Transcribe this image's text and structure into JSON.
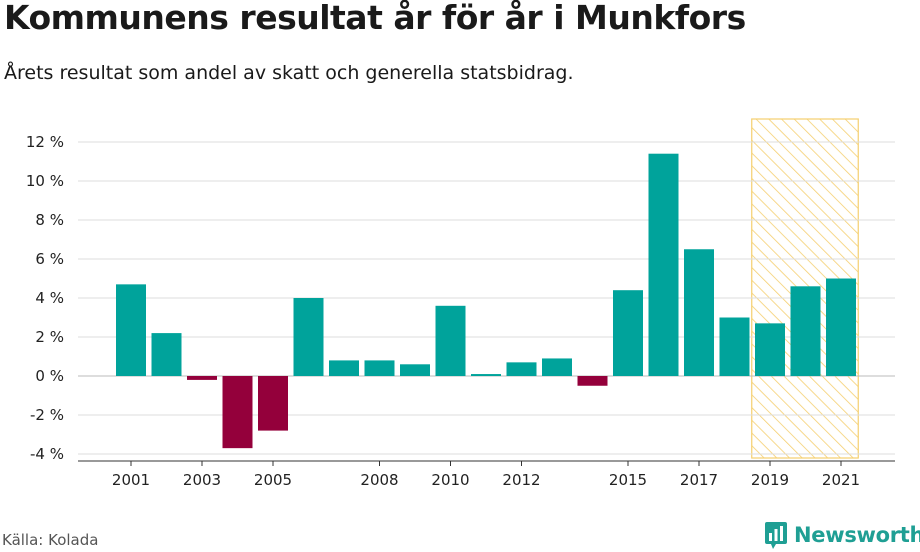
{
  "header": {
    "title": "Kommunens resultat år för år i Munkfors",
    "subtitle": "Årets resultat som andel av skatt och generella statsbidrag."
  },
  "footer": {
    "source": "Källa: Kolada",
    "brand": "Newsworthy"
  },
  "colors": {
    "positive": "#00a39b",
    "negative": "#94003b",
    "highlight": "#f5cf6e",
    "grid": "#dddddd",
    "brand": "#1f9f94"
  },
  "chart_data": {
    "type": "bar",
    "x": [
      2001,
      2002,
      2003,
      2004,
      2005,
      2006,
      2007,
      2008,
      2009,
      2010,
      2011,
      2012,
      2013,
      2014,
      2015,
      2016,
      2017,
      2018,
      2019,
      2020,
      2021
    ],
    "values": [
      4.7,
      2.2,
      -0.2,
      -3.7,
      -2.8,
      4.0,
      0.8,
      0.8,
      0.6,
      3.6,
      0.1,
      0.7,
      0.9,
      -0.5,
      4.4,
      11.4,
      6.5,
      3.0,
      2.7,
      4.6,
      5.0
    ],
    "tick_labels": [
      "2001",
      "2003",
      "2005",
      "2008",
      "2010",
      "2012",
      "2015",
      "2017",
      "2019",
      "2021"
    ],
    "tick_years": [
      2001,
      2003,
      2005,
      2008,
      2010,
      2012,
      2015,
      2017,
      2019,
      2021
    ],
    "y_ticks": [
      -4,
      -2,
      0,
      2,
      4,
      6,
      8,
      10,
      12
    ],
    "y_tick_labels": [
      "-4 %",
      "-2 %",
      "0 %",
      "2 %",
      "4 %",
      "6 %",
      "8 %",
      "10 %",
      "12 %"
    ],
    "ylim": [
      -4,
      12
    ],
    "highlight_range": [
      2019,
      2021
    ],
    "grid": true,
    "title": "",
    "xlabel": "",
    "ylabel": ""
  }
}
